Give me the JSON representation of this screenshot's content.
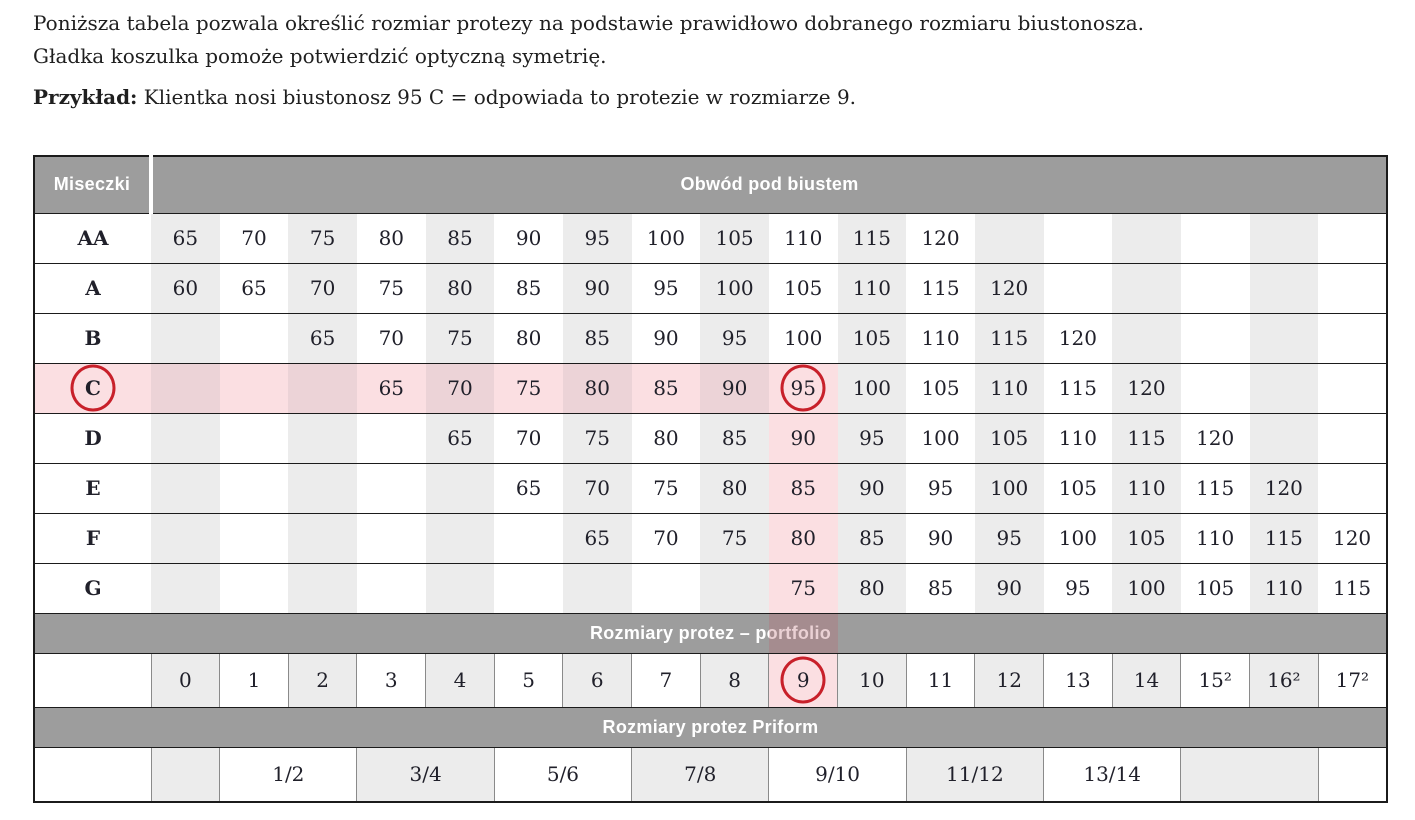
{
  "intro": {
    "line1": "Poniższa tabela pozwala określić rozmiar protezy na podstawie prawidłowo dobranego rozmiaru biustonosza.",
    "line2": "Gładka koszulka pomoże potwierdzić optyczną symetrię.",
    "example_label": "Przykład:",
    "example_text": " Klientka nosi biustonosz 95 C = odpowiada to protezie w rozmiarze 9."
  },
  "table": {
    "header": {
      "cups_label": "Miseczki",
      "band_label": "Obwód pod biustem"
    },
    "cup_rows": [
      {
        "cup": "AA",
        "values": [
          65,
          70,
          75,
          80,
          85,
          90,
          95,
          100,
          105,
          110,
          115,
          120,
          null,
          null,
          null,
          null,
          null,
          null
        ]
      },
      {
        "cup": "A",
        "values": [
          60,
          65,
          70,
          75,
          80,
          85,
          90,
          95,
          100,
          105,
          110,
          115,
          120,
          null,
          null,
          null,
          null,
          null
        ]
      },
      {
        "cup": "B",
        "values": [
          null,
          null,
          65,
          70,
          75,
          80,
          85,
          90,
          95,
          100,
          105,
          110,
          115,
          120,
          null,
          null,
          null,
          null
        ]
      },
      {
        "cup": "C",
        "values": [
          null,
          null,
          null,
          65,
          70,
          75,
          80,
          85,
          90,
          95,
          100,
          105,
          110,
          115,
          120,
          null,
          null,
          null
        ]
      },
      {
        "cup": "D",
        "values": [
          null,
          null,
          null,
          null,
          65,
          70,
          75,
          80,
          85,
          90,
          95,
          100,
          105,
          110,
          115,
          120,
          null,
          null
        ]
      },
      {
        "cup": "E",
        "values": [
          null,
          null,
          null,
          null,
          null,
          65,
          70,
          75,
          80,
          85,
          90,
          95,
          100,
          105,
          110,
          115,
          120,
          null
        ]
      },
      {
        "cup": "F",
        "values": [
          null,
          null,
          null,
          null,
          null,
          null,
          65,
          70,
          75,
          80,
          85,
          90,
          95,
          100,
          105,
          110,
          115,
          120
        ]
      },
      {
        "cup": "G",
        "values": [
          null,
          null,
          null,
          null,
          null,
          null,
          null,
          null,
          null,
          75,
          80,
          85,
          90,
          95,
          100,
          105,
          110,
          115
        ]
      }
    ],
    "highlight": {
      "row_cup": "C",
      "column_index": 9,
      "circled_values": [
        "C",
        "95",
        "9"
      ]
    },
    "portfolio_band_label": "Rozmiary protez – portfolio",
    "portfolio_sizes": [
      "0",
      "1",
      "2",
      "3",
      "4",
      "5",
      "6",
      "7",
      "8",
      "9",
      "10",
      "11",
      "12",
      "13",
      "14",
      "15²",
      "16²",
      "17²"
    ],
    "priform_band_label": "Rozmiary protez Priform",
    "priform_cells": [
      {
        "label": "",
        "span": 1,
        "shaded": true
      },
      {
        "label": "1/2",
        "span": 2,
        "shaded": false
      },
      {
        "label": "3/4",
        "span": 2,
        "shaded": true
      },
      {
        "label": "5/6",
        "span": 2,
        "shaded": false
      },
      {
        "label": "7/8",
        "span": 2,
        "shaded": true
      },
      {
        "label": "9/10",
        "span": 2,
        "shaded": false
      },
      {
        "label": "11/12",
        "span": 2,
        "shaded": true
      },
      {
        "label": "13/14",
        "span": 2,
        "shaded": false
      },
      {
        "label": "",
        "span": 2,
        "shaded": true
      },
      {
        "label": "",
        "span": 1,
        "shaded": false
      }
    ]
  },
  "colors": {
    "band_gray": "#9d9d9d",
    "stripe_gray": "#ececec",
    "pink": "#fbdfe2",
    "pink_dark": "#ecd3d7",
    "circle_red": "#c8202a",
    "grid_line": "#1b1b1b",
    "cell_divider": "#8a8a8a",
    "ink": "#20202a",
    "band_text": "#ffffff"
  }
}
